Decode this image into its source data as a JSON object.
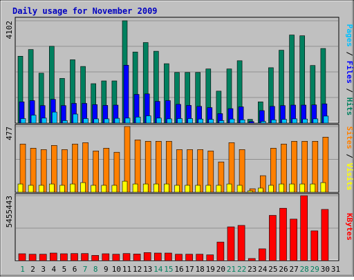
{
  "title": "Daily usage for November 2009",
  "colors": {
    "background": "#c0c0c0",
    "title": "#0000c0",
    "hits": "#00805f",
    "files": "#0000ff",
    "pages": "#00c0ff",
    "visits": "#ff8000",
    "sites": "#ffff00",
    "kbytes": "#ff0000",
    "weekend_label": "#00805f",
    "weekday_label": "#000000"
  },
  "chart_data": [
    {
      "type": "bar",
      "panel": "hits-files-pages",
      "ymax_label": "4102",
      "ylim": [
        0,
        4102
      ],
      "legend": {
        "parts": [
          {
            "text": "Pages",
            "color": "#00c0ff"
          },
          {
            "text": " / ",
            "color": "#000000"
          },
          {
            "text": "Files",
            "color": "#0000ff"
          },
          {
            "text": " / ",
            "color": "#000000"
          },
          {
            "text": "Hits",
            "color": "#00805f"
          }
        ],
        "placement": "right"
      },
      "categories": [
        "1",
        "2",
        "3",
        "4",
        "5",
        "6",
        "7",
        "8",
        "9",
        "10",
        "11",
        "12",
        "13",
        "14",
        "15",
        "16",
        "17",
        "18",
        "19",
        "20",
        "21",
        "22",
        "23",
        "24",
        "25",
        "26",
        "27",
        "28",
        "29",
        "30",
        "31"
      ],
      "series": [
        {
          "name": "Hits",
          "values": [
            2680,
            2950,
            2000,
            3080,
            1790,
            2540,
            2270,
            1580,
            1690,
            1690,
            4102,
            2850,
            3230,
            2880,
            2380,
            2030,
            2030,
            2030,
            2170,
            1280,
            2170,
            2500,
            150,
            850,
            2220,
            2920,
            3530,
            3500,
            2310,
            2990,
            0
          ]
        },
        {
          "name": "Files",
          "values": [
            850,
            900,
            700,
            950,
            700,
            790,
            790,
            740,
            710,
            720,
            2320,
            1150,
            1170,
            870,
            900,
            750,
            710,
            670,
            620,
            380,
            580,
            650,
            60,
            500,
            670,
            700,
            720,
            720,
            730,
            770,
            0
          ]
        },
        {
          "name": "Pages",
          "values": [
            180,
            320,
            200,
            440,
            100,
            360,
            180,
            170,
            170,
            190,
            200,
            240,
            290,
            200,
            170,
            180,
            180,
            160,
            150,
            100,
            160,
            130,
            10,
            70,
            130,
            150,
            170,
            160,
            170,
            280,
            0
          ]
        }
      ]
    },
    {
      "type": "bar",
      "panel": "visits-sites",
      "ymax_label": "477",
      "ylim": [
        0,
        477
      ],
      "legend": {
        "parts": [
          {
            "text": "Sites",
            "color": "#ff8000"
          },
          {
            "text": " / ",
            "color": "#000000"
          },
          {
            "text": "Visits",
            "color": "#ffff00"
          }
        ],
        "placement": "right"
      },
      "categories": [
        "1",
        "2",
        "3",
        "4",
        "5",
        "6",
        "7",
        "8",
        "9",
        "10",
        "11",
        "12",
        "13",
        "14",
        "15",
        "16",
        "17",
        "18",
        "19",
        "20",
        "21",
        "22",
        "23",
        "24",
        "25",
        "26",
        "27",
        "28",
        "29",
        "30",
        "31"
      ],
      "series": [
        {
          "name": "Sites",
          "values": [
            350,
            320,
            310,
            340,
            310,
            350,
            360,
            300,
            320,
            290,
            477,
            380,
            370,
            370,
            370,
            310,
            310,
            310,
            300,
            220,
            360,
            310,
            25,
            120,
            320,
            350,
            370,
            370,
            370,
            400,
            0
          ]
        },
        {
          "name": "Visits",
          "values": [
            60,
            50,
            50,
            60,
            50,
            60,
            70,
            50,
            50,
            50,
            80,
            60,
            60,
            60,
            60,
            50,
            50,
            50,
            50,
            50,
            60,
            50,
            10,
            30,
            50,
            60,
            60,
            60,
            60,
            70,
            0
          ]
        }
      ]
    },
    {
      "type": "bar",
      "panel": "kbytes",
      "ymax_label": "5455443",
      "ylim": [
        0,
        5455443
      ],
      "legend": {
        "parts": [
          {
            "text": "KBytes",
            "color": "#ff0000"
          }
        ],
        "placement": "right"
      },
      "categories": [
        "1",
        "2",
        "3",
        "4",
        "5",
        "6",
        "7",
        "8",
        "9",
        "10",
        "11",
        "12",
        "13",
        "14",
        "15",
        "16",
        "17",
        "18",
        "19",
        "20",
        "21",
        "22",
        "23",
        "24",
        "25",
        "26",
        "27",
        "28",
        "29",
        "30",
        "31"
      ],
      "series": [
        {
          "name": "KBytes",
          "values": [
            580000,
            540000,
            540000,
            640000,
            580000,
            600000,
            600000,
            440000,
            580000,
            540000,
            600000,
            560000,
            680000,
            640000,
            640000,
            540000,
            540000,
            540000,
            490000,
            1560000,
            2840000,
            2960000,
            180000,
            990000,
            3800000,
            4400000,
            3490000,
            5455443,
            2500000,
            4300000,
            0
          ]
        }
      ]
    }
  ],
  "days": [
    {
      "label": "1",
      "weekend": true
    },
    {
      "label": "2",
      "weekend": false
    },
    {
      "label": "3",
      "weekend": false
    },
    {
      "label": "4",
      "weekend": false
    },
    {
      "label": "5",
      "weekend": false
    },
    {
      "label": "6",
      "weekend": false
    },
    {
      "label": "7",
      "weekend": true
    },
    {
      "label": "8",
      "weekend": true
    },
    {
      "label": "9",
      "weekend": false
    },
    {
      "label": "10",
      "weekend": false
    },
    {
      "label": "11",
      "weekend": false
    },
    {
      "label": "12",
      "weekend": false
    },
    {
      "label": "13",
      "weekend": false
    },
    {
      "label": "14",
      "weekend": true
    },
    {
      "label": "15",
      "weekend": true
    },
    {
      "label": "16",
      "weekend": false
    },
    {
      "label": "17",
      "weekend": false
    },
    {
      "label": "18",
      "weekend": false
    },
    {
      "label": "19",
      "weekend": false
    },
    {
      "label": "20",
      "weekend": false
    },
    {
      "label": "21",
      "weekend": true
    },
    {
      "label": "22",
      "weekend": true
    },
    {
      "label": "23",
      "weekend": false
    },
    {
      "label": "24",
      "weekend": false
    },
    {
      "label": "25",
      "weekend": false
    },
    {
      "label": "26",
      "weekend": false
    },
    {
      "label": "27",
      "weekend": false
    },
    {
      "label": "28",
      "weekend": true
    },
    {
      "label": "29",
      "weekend": true
    },
    {
      "label": "30",
      "weekend": false
    },
    {
      "label": "31",
      "weekend": false
    }
  ]
}
